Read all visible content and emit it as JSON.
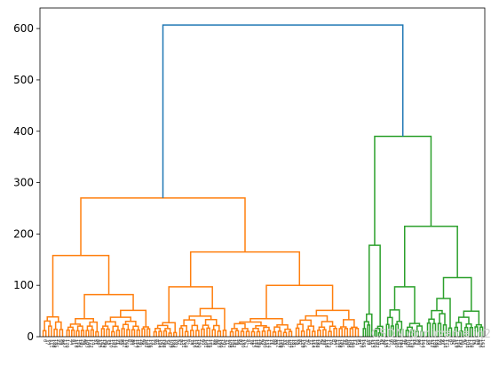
{
  "chart_data": {
    "type": "dendrogram",
    "title": "",
    "xlabel": "",
    "ylabel": "",
    "ylim": [
      0,
      640
    ],
    "yticks": [
      0,
      100,
      200,
      300,
      400,
      500,
      600
    ],
    "grid": false,
    "colors": {
      "cluster_1": "#ff7f0e",
      "cluster_2": "#2ca02c",
      "root": "#1f77b4",
      "axis": "#000000"
    },
    "merges": [
      {
        "name": "root",
        "height": 607,
        "color": "root"
      },
      {
        "name": "orange-cluster",
        "height": 270,
        "color": "cluster_1"
      },
      {
        "name": "green-cluster",
        "height": 390,
        "color": "cluster_2"
      },
      {
        "name": "orange-left",
        "height": 158,
        "color": "cluster_1"
      },
      {
        "name": "orange-right",
        "height": 165,
        "color": "cluster_1"
      },
      {
        "name": "green-left",
        "height": 178,
        "color": "cluster_2"
      },
      {
        "name": "green-right",
        "height": 215,
        "color": "cluster_2"
      },
      {
        "name": "orange-left-a",
        "height": 53,
        "color": "cluster_1"
      },
      {
        "name": "orange-left-b",
        "height": 82,
        "color": "cluster_1"
      },
      {
        "name": "orange-right-a",
        "height": 97,
        "color": "cluster_1"
      },
      {
        "name": "orange-right-b",
        "height": 100,
        "color": "cluster_1"
      },
      {
        "name": "green-right-a",
        "height": 97,
        "color": "cluster_2"
      },
      {
        "name": "green-right-b",
        "height": 115,
        "color": "cluster_2"
      }
    ],
    "watermark": "CSDN @mirzamaliq21",
    "leaf_count": 200
  }
}
